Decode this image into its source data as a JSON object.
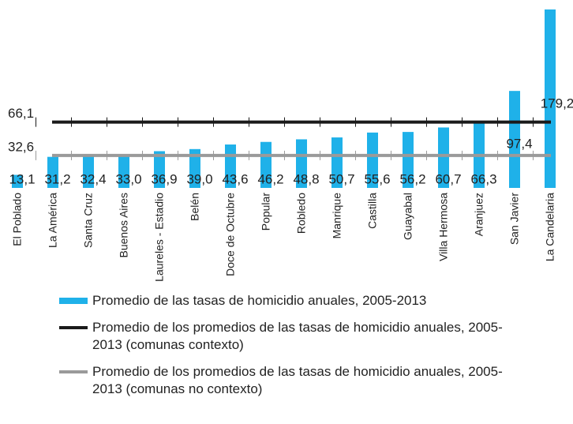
{
  "chart_data": {
    "type": "bar",
    "categories": [
      "El Poblado",
      "La América",
      "Santa Cruz",
      "Buenos Aires",
      "Laureles - Estadio",
      "Belén",
      "Doce de Octubre",
      "Popular",
      "Robledo",
      "Manrique",
      "Castilla",
      "Guayabal",
      "Villa Hermosa",
      "Aranjuez",
      "San Javier",
      "La Candelaria"
    ],
    "series": [
      {
        "name": "Promedio de las tasas de homicidio anuales, 2005-2013",
        "color": "#1fb1e9",
        "values": [
          13.1,
          31.2,
          32.4,
          33.0,
          36.9,
          39.0,
          43.6,
          46.2,
          48.8,
          50.7,
          55.6,
          56.2,
          60.7,
          66.3,
          97.4,
          179.2
        ],
        "value_labels": [
          "13,1",
          "31,2",
          "32,4",
          "33,0",
          "36,9",
          "39,0",
          "43,6",
          "46,2",
          "48,8",
          "50,7",
          "55,6",
          "56,2",
          "60,7",
          "66,3",
          "97,4",
          "179,2"
        ]
      }
    ],
    "reference_lines": [
      {
        "name": "Promedio de los promedios de las tasas de homicidio anuales, 2005-2013 (comunas contexto)",
        "color": "#1a1a1a",
        "value": 66.1,
        "value_label": "66,1"
      },
      {
        "name": "Promedio de los promedios de las tasas de homicidio anuales, 2005-2013 (comunas no contexto)",
        "color": "#9a9a9a",
        "value": 32.6,
        "value_label": "32,6"
      }
    ],
    "ylim": [
      0,
      180
    ]
  }
}
